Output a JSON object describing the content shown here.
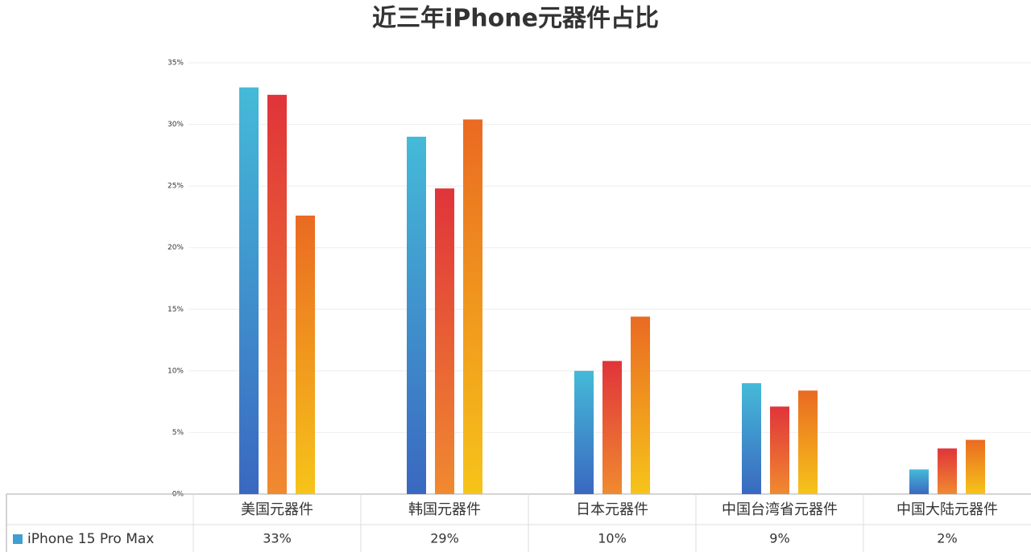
{
  "chart_data": {
    "type": "bar",
    "title": "近三年iPhone元器件占比",
    "categories": [
      "美国元器件",
      "韩国元器件",
      "日本元器件",
      "中国台湾省元器件",
      "中国大陆元器件"
    ],
    "series": [
      {
        "name": "iPhone 15 Pro Max",
        "color": "#3f9fd0",
        "gradient": [
          "#45bad8",
          "#3a68c0"
        ],
        "values": [
          33,
          29,
          10,
          9,
          2
        ],
        "value_labels": [
          "33%",
          "29%",
          "10%",
          "9%",
          "2%"
        ]
      },
      {
        "color": "#e2463a",
        "gradient": [
          "#e0343a",
          "#f08a30"
        ],
        "values": [
          32.4,
          24.8,
          10.8,
          7.1,
          3.7
        ]
      },
      {
        "color": "#f09a20",
        "gradient": [
          "#ea6a22",
          "#f6c41a"
        ],
        "values": [
          22.6,
          30.4,
          14.4,
          8.4,
          4.4
        ]
      }
    ],
    "ylim": [
      0,
      35
    ],
    "yticks": [
      {
        "value": 0,
        "label": "0%"
      },
      {
        "value": 5,
        "label": "5%"
      },
      {
        "value": 10,
        "label": "10%"
      },
      {
        "value": 15,
        "label": "15%"
      },
      {
        "value": 20,
        "label": "20%"
      },
      {
        "value": 25,
        "label": "25%"
      },
      {
        "value": 30,
        "label": "30%"
      },
      {
        "value": 35,
        "label": "35%"
      }
    ],
    "grid": true
  }
}
